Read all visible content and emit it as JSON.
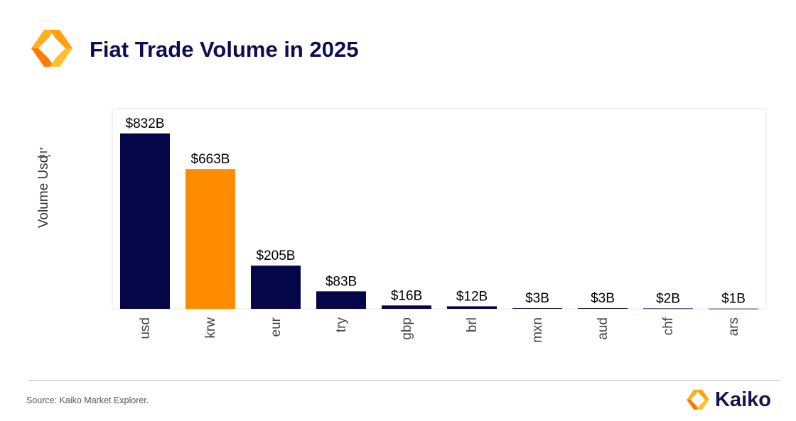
{
  "title": "Fiat Trade Volume in 2025",
  "source": "Source: Kaiko Market Explorer.",
  "brand": "Kaiko",
  "chart_data": {
    "type": "bar",
    "title": "Fiat Trade Volume in 2025",
    "xlabel": "",
    "ylabel": "Volume Usd",
    "categories": [
      "usd",
      "krw",
      "eur",
      "try",
      "gbp",
      "brl",
      "mxn",
      "aud",
      "chf",
      "ars"
    ],
    "values": [
      832,
      663,
      205,
      83,
      16,
      12,
      3,
      3,
      2,
      1
    ],
    "data_labels": [
      "$832B",
      "$663B",
      "$205B",
      "$83B",
      "$16B",
      "$12B",
      "$3B",
      "$3B",
      "$2B",
      "$1B"
    ],
    "units": "billion USD",
    "ylim": [
      0,
      950
    ],
    "grid": false,
    "colors": {
      "default": "#050549",
      "highlight": "#ff8c00"
    },
    "highlight_category": "krw"
  }
}
